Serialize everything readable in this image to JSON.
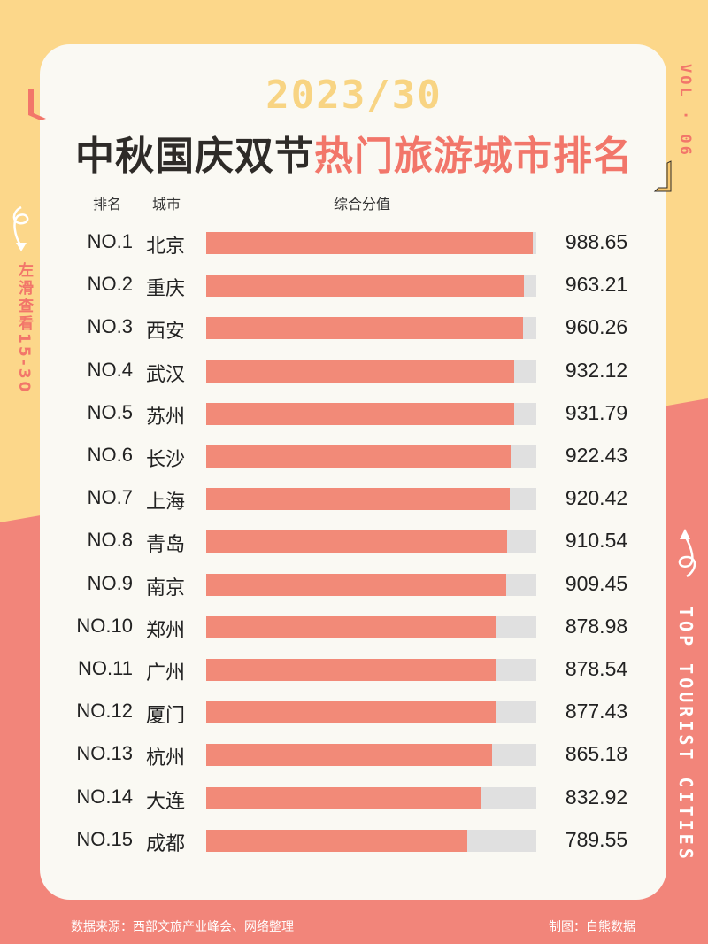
{
  "colors": {
    "yellow": "#FCD78A",
    "salmon": "#F2857A",
    "bar": "#F28A78",
    "track": "#E0E0E0",
    "card": "#FAF9F3"
  },
  "header": {
    "year": "2023/30",
    "title_part1": "中秋国庆双节",
    "title_part2": "热门旅游城市排名"
  },
  "side": {
    "left": "左滑查看15-30",
    "right_top": "VOL · 06",
    "right_bottom": "TOP TOURIST CITIES"
  },
  "chart_data": {
    "type": "bar",
    "orientation": "horizontal",
    "column_headers": {
      "rank": "排名",
      "city": "城市",
      "score": "综合分值"
    },
    "xlim": [
      0,
      1000
    ],
    "rows": [
      {
        "rank": "NO.1",
        "city": "北京",
        "value": 988.65
      },
      {
        "rank": "NO.2",
        "city": "重庆",
        "value": 963.21
      },
      {
        "rank": "NO.3",
        "city": "西安",
        "value": 960.26
      },
      {
        "rank": "NO.4",
        "city": "武汉",
        "value": 932.12
      },
      {
        "rank": "NO.5",
        "city": "苏州",
        "value": 931.79
      },
      {
        "rank": "NO.6",
        "city": "长沙",
        "value": 922.43
      },
      {
        "rank": "NO.7",
        "city": "上海",
        "value": 920.42
      },
      {
        "rank": "NO.8",
        "city": "青岛",
        "value": 910.54
      },
      {
        "rank": "NO.9",
        "city": "南京",
        "value": 909.45
      },
      {
        "rank": "NO.10",
        "city": "郑州",
        "value": 878.98
      },
      {
        "rank": "NO.11",
        "city": "广州",
        "value": 878.54
      },
      {
        "rank": "NO.12",
        "city": "厦门",
        "value": 877.43
      },
      {
        "rank": "NO.13",
        "city": "杭州",
        "value": 865.18
      },
      {
        "rank": "NO.14",
        "city": "大连",
        "value": 832.92
      },
      {
        "rank": "NO.15",
        "city": "成都",
        "value": 789.55
      }
    ]
  },
  "footer": {
    "source": "数据来源：西部文旅产业峰会、网络整理",
    "credit": "制图：白熊数据"
  }
}
